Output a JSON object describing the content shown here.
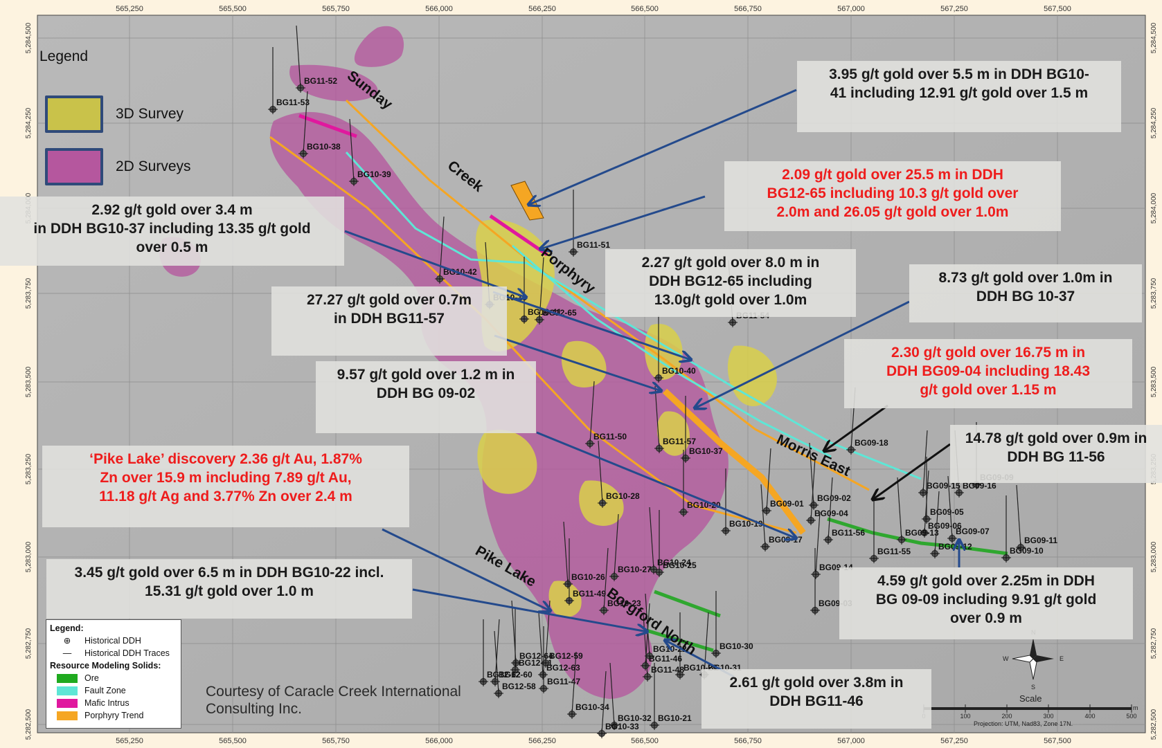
{
  "map": {
    "x_ticks": [
      "565,250",
      "565,500",
      "565,750",
      "566,000",
      "566,250",
      "566,500",
      "566,750",
      "567,000",
      "567,250",
      "567,500"
    ],
    "y_ticks": [
      "5,284,500",
      "5,284,250",
      "5,284,000",
      "5,283,750",
      "5,283,500",
      "5,283,250",
      "5,283,000",
      "5,282,750",
      "5,282,500"
    ],
    "colors": {
      "ore": "#2fa72f",
      "fault_zone": "#5ee6d6",
      "mafic": "#e0189e",
      "porphyry": "#f5a623",
      "survey_3d": "#c9c24a",
      "survey_2d": "#b94a9e",
      "callout_red": "#ee1c1c"
    }
  },
  "legend_top": {
    "title": "Legend",
    "items": [
      {
        "label": "3D Survey",
        "color": "#c9c24a"
      },
      {
        "label": "2D Surveys",
        "color": "#b5579e"
      }
    ]
  },
  "legend_box": {
    "title": "Legend:",
    "historical_ddh": "Historical DDH",
    "historical_traces": "Historical DDH Traces",
    "solids_title": "Resource Modeling Solids:",
    "solids": [
      {
        "label": "Ore",
        "color": "#1faa1f"
      },
      {
        "label": "Fault Zone",
        "color": "#5ee6d6"
      },
      {
        "label": "Mafic Intrus",
        "color": "#e0189e"
      },
      {
        "label": "Porphyry Trend",
        "color": "#f5a623"
      }
    ]
  },
  "courtesy": {
    "line1": "Courtesy of Caracle Creek International",
    "line2": "Consulting Inc."
  },
  "callouts": [
    {
      "lines": [
        "3.95 g/t gold over 5.5 m  in DDH BG10-",
        "41 including 12.91 g/t gold over 1.5 m"
      ],
      "color": "dark"
    },
    {
      "lines": [
        "2.09 g/t gold over 25.5 m  in DDH",
        "BG12-65 including 10.3 g/t gold over",
        "2.0m and 26.05 g/t gold over 1.0m"
      ],
      "color": "red"
    },
    {
      "lines": [
        "2.92 g/t gold over 3.4 m",
        "in DDH BG10-37  including 13.35 g/t gold",
        "over 0.5 m"
      ],
      "color": "dark"
    },
    {
      "lines": [
        "2.27 g/t gold over 8.0 m  in",
        "DDH BG12-65 including",
        "13.0g/t gold over 1.0m"
      ],
      "color": "dark"
    },
    {
      "lines": [
        "8.73 g/t gold over 1.0m in",
        "DDH BG 10-37"
      ],
      "color": "dark"
    },
    {
      "lines": [
        "27.27 g/t gold over 0.7m",
        "in DDH BG11-57"
      ],
      "color": "dark"
    },
    {
      "lines": [
        "2.30 g/t gold over 16.75 m in",
        "DDH BG09-04  including 18.43",
        "g/t gold over 1.15 m"
      ],
      "color": "red"
    },
    {
      "lines": [
        "9.57 g/t gold over 1.2 m in",
        "DDH BG 09-02"
      ],
      "color": "dark"
    },
    {
      "lines": [
        "14.78 g/t gold over 0.9m in",
        "DDH BG 11-56"
      ],
      "color": "dark"
    },
    {
      "lines": [
        "‘Pike Lake’ discovery 2.36 g/t Au, 1.87%",
        "Zn over 15.9 m including 7.89 g/t Au,",
        "11.18 g/t Ag and 3.77% Zn over 2.4 m"
      ],
      "color": "red"
    },
    {
      "lines": [
        "3.45 g/t gold over 6.5 m in DDH BG10-22 incl.",
        "15.31 g/t gold over 1.0 m"
      ],
      "color": "dark"
    },
    {
      "lines": [
        "4.59 g/t gold over 2.25m in  DDH",
        "BG 09-09 including 9.91 g/t gold",
        "over 0.9 m"
      ],
      "color": "dark"
    },
    {
      "lines": [
        "2.61 g/t gold  over 3.8m in",
        "DDH BG11-46"
      ],
      "color": "dark"
    }
  ],
  "trend_labels": [
    "Sunday",
    "Creek",
    "Porphyry",
    "Morris East",
    "Pike Lake",
    "Borgford North"
  ],
  "drillholes": [
    "BG11-52",
    "BG11-53",
    "BG10-38",
    "BG10-39",
    "BG11-51",
    "BG10-42",
    "BG10-13",
    "BG10-41",
    "BG12-65",
    "BG11-54",
    "BG10-40",
    "BG11-50",
    "BG11-57",
    "BG10-37",
    "BG09-18",
    "BG10-28",
    "BG10-20",
    "BG09-01",
    "BG09-02",
    "BG10-19",
    "BG09-04",
    "BG09-17",
    "BG09-09",
    "BG09-15",
    "BG09-16",
    "BG09-05",
    "BG09-06",
    "BG09-07",
    "BG09-03",
    "BG11-56",
    "BG09-13",
    "BG11-55",
    "BG09-12",
    "BG09-11",
    "BG09-10",
    "BG09-14",
    "BG10-24",
    "BG10-25",
    "BG10-27",
    "BG10-26",
    "BG11-49",
    "BG10-23",
    "BG10-22",
    "BG10-30",
    "BG11-46",
    "BG11-48",
    "BG10-29",
    "BG10-31",
    "BG12-64",
    "BG12-61",
    "BG12-59",
    "BG12-63",
    "BG12-62",
    "BG12-60",
    "BG12-58",
    "BG11-47",
    "BG10-34",
    "BG10-32",
    "BG10-21",
    "BG10-33"
  ],
  "scale_bar": {
    "title": "Scale",
    "ticks": [
      "0",
      "100",
      "200",
      "300",
      "400",
      "500"
    ],
    "unit": "m",
    "projection": "Projection: UTM, Nad83, Zone 17N."
  },
  "north_arrow": {
    "n": "N",
    "s": "S",
    "e": "E",
    "w": "W"
  }
}
